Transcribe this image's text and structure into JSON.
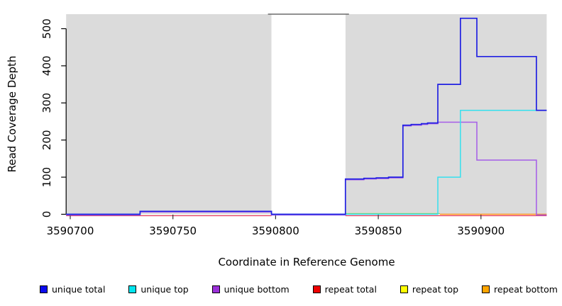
{
  "chart_data": {
    "type": "line",
    "subtype": "step-coverage-plot",
    "xlabel": "Coordinate in Reference Genome",
    "ylabel": "Read Coverage Depth",
    "xlim": [
      3590698,
      3590932
    ],
    "ylim": [
      0,
      530
    ],
    "grid": false,
    "x_ticks": [
      {
        "value": 3590700,
        "label": "3590700"
      },
      {
        "value": 3590750,
        "label": "3590750"
      },
      {
        "value": 3590800,
        "label": "3590800"
      },
      {
        "value": 3590850,
        "label": "3590850"
      },
      {
        "value": 3590900,
        "label": "3590900"
      }
    ],
    "y_ticks": [
      {
        "value": 0,
        "label": "0"
      },
      {
        "value": 100,
        "label": "100"
      },
      {
        "value": 200,
        "label": "200"
      },
      {
        "value": 300,
        "label": "300"
      },
      {
        "value": 400,
        "label": "400"
      },
      {
        "value": 500,
        "label": "500"
      }
    ],
    "plot_background": "#ffffff",
    "shaded_regions": [
      {
        "x1": 3590698,
        "x2": 3590798,
        "color": "#DBDBDB"
      },
      {
        "x1": 3590834,
        "x2": 3590932,
        "color": "#DBDBDB"
      }
    ],
    "masked_region": {
      "x1": 3590798,
      "x2": 3590834,
      "fill": "#ffffff",
      "top_border_color": "#6B6B6B"
    },
    "series": [
      {
        "name": "repeat total",
        "color": "#E2385C",
        "width": 1.3,
        "py_offset": 2,
        "paths": [
          [
            [
              3590698,
              0
            ],
            [
              3590798,
              0
            ]
          ],
          [
            [
              3590834,
              0
            ],
            [
              3590932,
              0
            ]
          ]
        ]
      },
      {
        "name": "repeat top",
        "color": "#F5E642",
        "width": 1.3,
        "py_offset": -1,
        "paths": [
          [
            [
              3590834,
              0
            ],
            [
              3590880,
              0
            ]
          ]
        ]
      },
      {
        "name": "repeat top (blended with unique top)",
        "color": "#7ED87E",
        "width": 1.3,
        "py_offset": -1,
        "paths": [
          [
            [
              3590834,
              0
            ],
            [
              3590880,
              0
            ]
          ]
        ]
      },
      {
        "name": "repeat bottom",
        "color": "#FF9015",
        "width": 1.5,
        "py_offset": 0,
        "paths": [
          [
            [
              3590880,
              0
            ],
            [
              3590932,
              0
            ]
          ]
        ]
      },
      {
        "name": "unique bottom",
        "color": "#A55CE8",
        "width": 1.5,
        "py_offset": 1,
        "paths": [
          [
            [
              3590698,
              0
            ],
            [
              3590734,
              0
            ],
            [
              3590734,
              8
            ],
            [
              3590798,
              8
            ],
            [
              3590798,
              0
            ],
            [
              3590834,
              0
            ],
            [
              3590834,
              95
            ],
            [
              3590843,
              95
            ],
            [
              3590843,
              97
            ],
            [
              3590849,
              97
            ],
            [
              3590849,
              98
            ],
            [
              3590855,
              98
            ],
            [
              3590855,
              100
            ],
            [
              3590862,
              100
            ],
            [
              3590862,
              240
            ],
            [
              3590866,
              240
            ],
            [
              3590866,
              242
            ],
            [
              3590871,
              242
            ],
            [
              3590871,
              244
            ],
            [
              3590874,
              244
            ],
            [
              3590874,
              246
            ],
            [
              3590879,
              246
            ],
            [
              3590879,
              250
            ],
            [
              3590898,
              250
            ],
            [
              3590898,
              148
            ],
            [
              3590927,
              148
            ],
            [
              3590927,
              0
            ],
            [
              3590932,
              0
            ]
          ]
        ]
      },
      {
        "name": "unique top",
        "color": "#35E0EE",
        "width": 1.5,
        "py_offset": 0,
        "paths": [
          [
            [
              3590698,
              0
            ],
            [
              3590734,
              0
            ],
            [
              3590734,
              8
            ],
            [
              3590798,
              8
            ],
            [
              3590798,
              0
            ],
            [
              3590879,
              0
            ],
            [
              3590879,
              100
            ],
            [
              3590890,
              100
            ],
            [
              3590890,
              280
            ],
            [
              3590932,
              280
            ]
          ]
        ]
      },
      {
        "name": "unique total",
        "color": "#2121E2",
        "width": 1.7,
        "py_offset": 0,
        "paths": [
          [
            [
              3590698,
              0
            ],
            [
              3590734,
              0
            ],
            [
              3590734,
              8
            ],
            [
              3590798,
              8
            ],
            [
              3590798,
              0
            ],
            [
              3590834,
              0
            ],
            [
              3590834,
              95
            ],
            [
              3590843,
              95
            ],
            [
              3590843,
              97
            ],
            [
              3590849,
              97
            ],
            [
              3590849,
              98
            ],
            [
              3590855,
              98
            ],
            [
              3590855,
              100
            ],
            [
              3590862,
              100
            ],
            [
              3590862,
              240
            ],
            [
              3590866,
              240
            ],
            [
              3590866,
              242
            ],
            [
              3590871,
              242
            ],
            [
              3590871,
              244
            ],
            [
              3590874,
              244
            ],
            [
              3590874,
              246
            ],
            [
              3590879,
              246
            ],
            [
              3590879,
              350
            ],
            [
              3590890,
              350
            ],
            [
              3590890,
              528
            ],
            [
              3590898,
              528
            ],
            [
              3590898,
              425
            ],
            [
              3590927,
              425
            ],
            [
              3590927,
              280
            ],
            [
              3590932,
              280
            ]
          ]
        ]
      }
    ],
    "legend": [
      {
        "label": "unique total",
        "color": "#0B0BEE"
      },
      {
        "label": "unique top",
        "color": "#00E5EE"
      },
      {
        "label": "unique bottom",
        "color": "#9B30D9"
      },
      {
        "label": "repeat total",
        "color": "#EE0000"
      },
      {
        "label": "repeat top",
        "color": "#FFFF00"
      },
      {
        "label": "repeat bottom",
        "color": "#FFA500"
      }
    ],
    "legend_position": "bottom"
  }
}
